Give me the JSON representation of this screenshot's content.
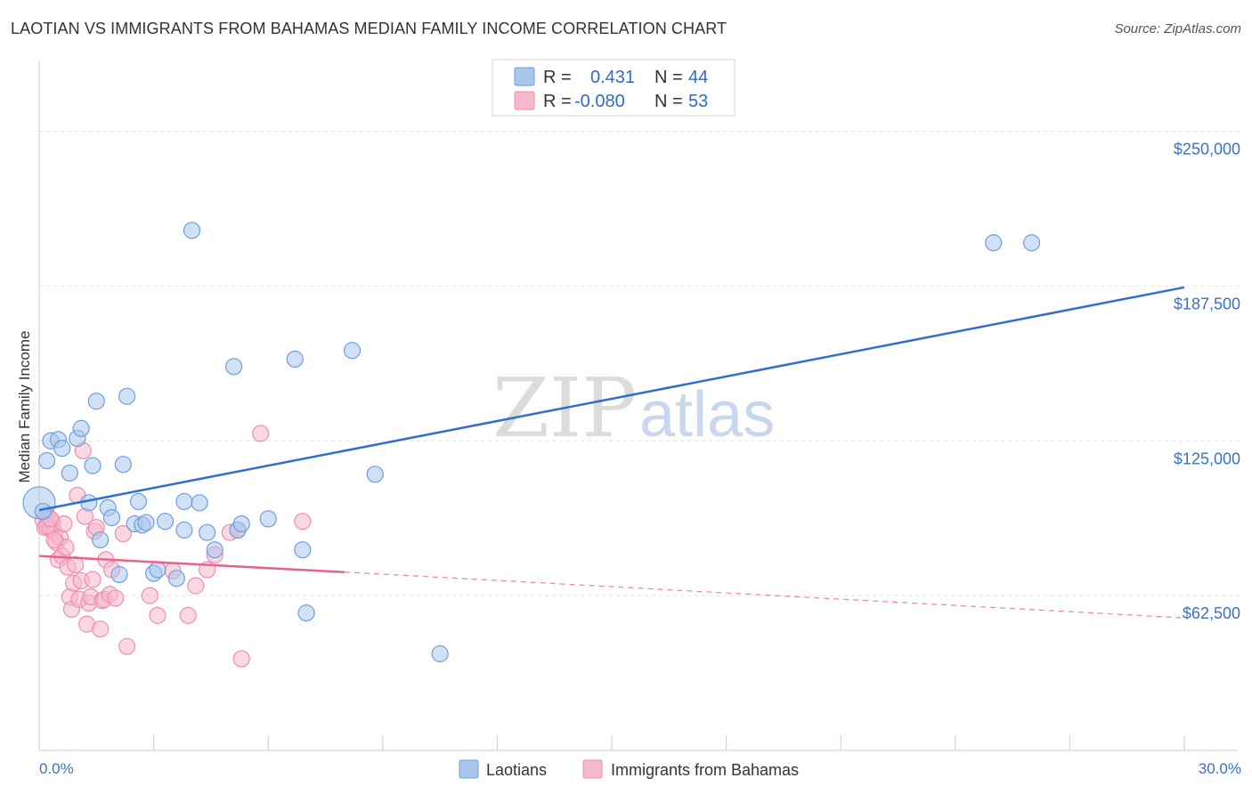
{
  "header": {
    "title": "LAOTIAN VS IMMIGRANTS FROM BAHAMAS MEDIAN FAMILY INCOME CORRELATION CHART",
    "source": "Source: ZipAtlas.com"
  },
  "watermark": {
    "zip": "ZIP",
    "atlas": "atlas"
  },
  "legend": {
    "rows": [
      {
        "r_label": "R =",
        "r_value": "0.431",
        "n_label": "N =",
        "n_value": "44",
        "color": "#a9c6ec"
      },
      {
        "r_label": "R =",
        "r_value": "-0.080",
        "n_label": "N =",
        "n_value": "53",
        "color": "#f6b8cb"
      }
    ]
  },
  "bottom_legend": [
    {
      "label": "Laotians",
      "color": "#a9c6ec"
    },
    {
      "label": "Immigrants from Bahamas",
      "color": "#f6b8cb"
    }
  ],
  "chart_data": {
    "type": "scatter",
    "title": "LAOTIAN VS IMMIGRANTS FROM BAHAMAS MEDIAN FAMILY INCOME CORRELATION CHART",
    "xlabel": "",
    "ylabel": "Median Family Income",
    "xlim": [
      0,
      30
    ],
    "ylim": [
      0,
      275000
    ],
    "x_tick_labels": [
      "0.0%",
      "30.0%"
    ],
    "y_tick_labels": [
      "$62,500",
      "$125,000",
      "$187,500",
      "$250,000"
    ],
    "y_ticks": [
      62500,
      125000,
      187500,
      250000
    ],
    "grid": true,
    "legend_position": "top-center",
    "series": [
      {
        "name": "Laotians",
        "color": "#6f9fdc",
        "fill": "#a9c6ec",
        "points": [
          [
            0.0,
            100000
          ],
          [
            0.2,
            117000
          ],
          [
            0.3,
            125000
          ],
          [
            0.5,
            125500
          ],
          [
            0.6,
            122000
          ],
          [
            0.8,
            112000
          ],
          [
            1.0,
            126000
          ],
          [
            1.1,
            130000
          ],
          [
            1.4,
            115000
          ],
          [
            1.3,
            100000
          ],
          [
            1.5,
            141000
          ],
          [
            1.6,
            85000
          ],
          [
            1.8,
            98000
          ],
          [
            1.9,
            94000
          ],
          [
            2.1,
            71000
          ],
          [
            2.2,
            115500
          ],
          [
            2.3,
            143000
          ],
          [
            2.5,
            91500
          ],
          [
            2.6,
            100500
          ],
          [
            2.7,
            91000
          ],
          [
            2.8,
            92000
          ],
          [
            3.0,
            71500
          ],
          [
            3.1,
            73000
          ],
          [
            3.3,
            92500
          ],
          [
            3.6,
            69500
          ],
          [
            3.8,
            89000
          ],
          [
            3.8,
            100500
          ],
          [
            4.0,
            210000
          ],
          [
            4.2,
            100000
          ],
          [
            4.4,
            88000
          ],
          [
            4.6,
            81000
          ],
          [
            5.1,
            155000
          ],
          [
            5.2,
            89000
          ],
          [
            5.3,
            91500
          ],
          [
            6.0,
            93500
          ],
          [
            6.7,
            158000
          ],
          [
            6.9,
            81000
          ],
          [
            7.0,
            55500
          ],
          [
            8.2,
            161500
          ],
          [
            8.8,
            111500
          ],
          [
            10.5,
            39000
          ],
          [
            25.0,
            205000
          ],
          [
            26.0,
            205000
          ],
          [
            0.1,
            96500
          ]
        ]
      },
      {
        "name": "Immigrants from Bahamas",
        "color": "#ee8fae",
        "fill": "#f6b8cb",
        "points": [
          [
            0.1,
            93000
          ],
          [
            0.15,
            90000
          ],
          [
            0.2,
            95000
          ],
          [
            0.25,
            91000
          ],
          [
            0.3,
            89500
          ],
          [
            0.35,
            92000
          ],
          [
            0.4,
            88000
          ],
          [
            0.45,
            84000
          ],
          [
            0.5,
            77000
          ],
          [
            0.55,
            86000
          ],
          [
            0.6,
            78500
          ],
          [
            0.65,
            91500
          ],
          [
            0.7,
            82000
          ],
          [
            0.75,
            74000
          ],
          [
            0.8,
            62000
          ],
          [
            0.85,
            57000
          ],
          [
            0.9,
            67500
          ],
          [
            0.95,
            75000
          ],
          [
            1.0,
            103000
          ],
          [
            1.05,
            61000
          ],
          [
            1.1,
            68500
          ],
          [
            1.15,
            121000
          ],
          [
            1.2,
            94500
          ],
          [
            1.25,
            51000
          ],
          [
            1.3,
            59500
          ],
          [
            1.35,
            62000
          ],
          [
            1.4,
            69000
          ],
          [
            1.45,
            88500
          ],
          [
            1.5,
            90000
          ],
          [
            1.6,
            49000
          ],
          [
            1.65,
            60500
          ],
          [
            1.7,
            61000
          ],
          [
            1.75,
            77000
          ],
          [
            1.85,
            63000
          ],
          [
            1.9,
            73000
          ],
          [
            2.0,
            61500
          ],
          [
            2.2,
            87500
          ],
          [
            2.3,
            42000
          ],
          [
            2.9,
            62500
          ],
          [
            3.1,
            54500
          ],
          [
            3.5,
            72500
          ],
          [
            3.9,
            54500
          ],
          [
            4.1,
            66500
          ],
          [
            4.4,
            73000
          ],
          [
            4.6,
            79000
          ],
          [
            5.0,
            88000
          ],
          [
            5.2,
            89000
          ],
          [
            5.3,
            37000
          ],
          [
            5.8,
            128000
          ],
          [
            6.9,
            92500
          ],
          [
            0.2,
            90500
          ],
          [
            0.3,
            93500
          ],
          [
            0.4,
            85000
          ]
        ]
      }
    ],
    "trendlines": [
      {
        "series": "Laotians",
        "x": [
          0.0,
          30.0
        ],
        "y": [
          97000,
          187000
        ],
        "style": "solid"
      },
      {
        "series": "Immigrants from Bahamas",
        "x": [
          0.0,
          8.0
        ],
        "y": [
          78500,
          72000
        ],
        "style": "solid"
      },
      {
        "series": "Immigrants from Bahamas",
        "x": [
          8.0,
          30.0
        ],
        "y": [
          72000,
          53500
        ],
        "style": "dashed"
      }
    ]
  }
}
